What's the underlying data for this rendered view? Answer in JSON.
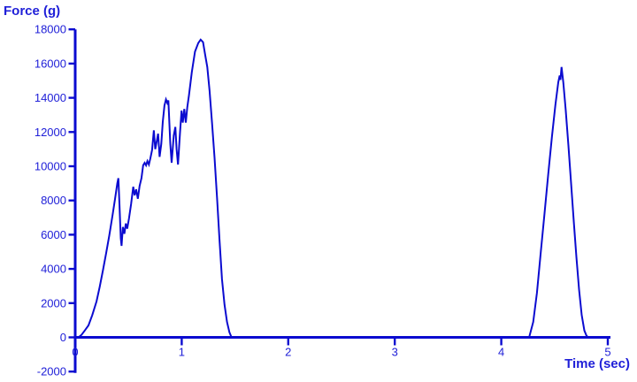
{
  "colors": {
    "line": "#0b0bd0",
    "axis": "#0b0bd0",
    "label": "#2020d8",
    "background": "#ffffff"
  },
  "chart_data": {
    "type": "line",
    "title": "",
    "xlabel": "Time (sec)",
    "ylabel": "Force (g)",
    "xlim": [
      0,
      5
    ],
    "ylim": [
      -2000,
      18000
    ],
    "x_ticks": [
      0,
      1,
      2,
      3,
      4,
      5
    ],
    "y_ticks": [
      -2000,
      0,
      2000,
      4000,
      6000,
      8000,
      10000,
      12000,
      14000,
      16000,
      18000
    ],
    "grid": false,
    "legend_position": "none",
    "series": [
      {
        "name": "force",
        "points": [
          [
            0,
            0
          ],
          [
            0.03,
            0
          ],
          [
            0.06,
            150
          ],
          [
            0.09,
            400
          ],
          [
            0.125,
            700
          ],
          [
            0.16,
            1300
          ],
          [
            0.2,
            2100
          ],
          [
            0.23,
            2950
          ],
          [
            0.26,
            3900
          ],
          [
            0.29,
            4900
          ],
          [
            0.32,
            5950
          ],
          [
            0.35,
            7100
          ],
          [
            0.375,
            8150
          ],
          [
            0.395,
            9000
          ],
          [
            0.405,
            9300
          ],
          [
            0.415,
            7800
          ],
          [
            0.428,
            5800
          ],
          [
            0.435,
            5350
          ],
          [
            0.448,
            6450
          ],
          [
            0.462,
            6050
          ],
          [
            0.475,
            6650
          ],
          [
            0.488,
            6350
          ],
          [
            0.505,
            6950
          ],
          [
            0.525,
            7800
          ],
          [
            0.545,
            8800
          ],
          [
            0.558,
            8300
          ],
          [
            0.572,
            8650
          ],
          [
            0.588,
            8100
          ],
          [
            0.605,
            8850
          ],
          [
            0.622,
            9300
          ],
          [
            0.638,
            10050
          ],
          [
            0.652,
            10200
          ],
          [
            0.665,
            10050
          ],
          [
            0.678,
            10300
          ],
          [
            0.692,
            10100
          ],
          [
            0.705,
            10450
          ],
          [
            0.722,
            10950
          ],
          [
            0.738,
            12100
          ],
          [
            0.752,
            11000
          ],
          [
            0.768,
            11550
          ],
          [
            0.778,
            11900
          ],
          [
            0.792,
            10550
          ],
          [
            0.808,
            11300
          ],
          [
            0.822,
            12600
          ],
          [
            0.838,
            13550
          ],
          [
            0.852,
            13900
          ],
          [
            0.865,
            13700
          ],
          [
            0.875,
            13850
          ],
          [
            0.893,
            11300
          ],
          [
            0.905,
            10200
          ],
          [
            0.925,
            11800
          ],
          [
            0.94,
            12300
          ],
          [
            0.952,
            11000
          ],
          [
            0.965,
            10100
          ],
          [
            0.983,
            11900
          ],
          [
            0.998,
            13250
          ],
          [
            1.01,
            12550
          ],
          [
            1.024,
            13350
          ],
          [
            1.038,
            12550
          ],
          [
            1.052,
            13450
          ],
          [
            1.068,
            14150
          ],
          [
            1.095,
            15500
          ],
          [
            1.125,
            16700
          ],
          [
            1.155,
            17200
          ],
          [
            1.178,
            17400
          ],
          [
            1.2,
            17250
          ],
          [
            1.222,
            16450
          ],
          [
            1.24,
            15800
          ],
          [
            1.262,
            14400
          ],
          [
            1.285,
            12500
          ],
          [
            1.308,
            10500
          ],
          [
            1.332,
            8100
          ],
          [
            1.355,
            5700
          ],
          [
            1.378,
            3400
          ],
          [
            1.402,
            1900
          ],
          [
            1.425,
            900
          ],
          [
            1.448,
            300
          ],
          [
            1.468,
            0
          ],
          [
            4.262,
            0
          ],
          [
            4.3,
            900
          ],
          [
            4.335,
            2600
          ],
          [
            4.37,
            4900
          ],
          [
            4.405,
            7200
          ],
          [
            4.44,
            9500
          ],
          [
            4.475,
            11700
          ],
          [
            4.508,
            13600
          ],
          [
            4.535,
            14900
          ],
          [
            4.548,
            15300
          ],
          [
            4.556,
            15050
          ],
          [
            4.566,
            15800
          ],
          [
            4.582,
            14900
          ],
          [
            4.605,
            13300
          ],
          [
            4.63,
            11200
          ],
          [
            4.655,
            9000
          ],
          [
            4.68,
            6800
          ],
          [
            4.705,
            4700
          ],
          [
            4.73,
            2800
          ],
          [
            4.755,
            1300
          ],
          [
            4.78,
            400
          ],
          [
            4.8,
            100
          ],
          [
            4.815,
            0
          ],
          [
            5.0,
            0
          ]
        ]
      }
    ]
  }
}
